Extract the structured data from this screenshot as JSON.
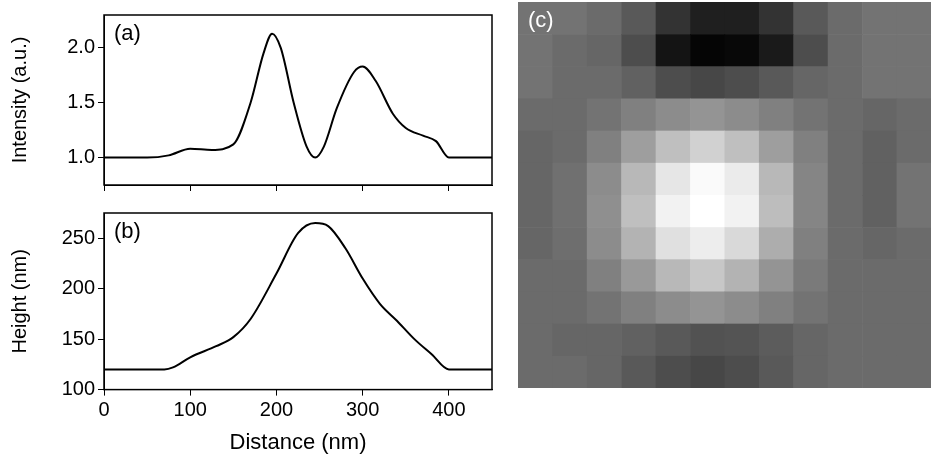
{
  "chart_data": [
    {
      "type": "line",
      "title": "(a)",
      "ylabel": "Intensity (a.u.)",
      "color": "#000000",
      "x": [
        0,
        50,
        75,
        100,
        125,
        150,
        170,
        185,
        195,
        205,
        220,
        235,
        245,
        255,
        270,
        290,
        300,
        315,
        335,
        350,
        370,
        385,
        400,
        450
      ],
      "values": [
        1.0,
        1.0,
        1.02,
        1.08,
        1.07,
        1.12,
        1.5,
        1.95,
        2.13,
        2.0,
        1.5,
        1.1,
        1.0,
        1.1,
        1.45,
        1.78,
        1.83,
        1.7,
        1.4,
        1.27,
        1.2,
        1.15,
        1.0,
        1.0
      ],
      "xlim": [
        0,
        450
      ],
      "xticks": [
        0,
        100,
        200,
        300,
        400
      ],
      "ylim": [
        0.75,
        2.3
      ],
      "yticks": [
        {
          "value": 1,
          "label": "1.0"
        },
        {
          "value": 1.5,
          "label": "1.5"
        },
        {
          "value": 2,
          "label": "2.0"
        }
      ],
      "tick_labels": "y"
    },
    {
      "type": "line",
      "title": "(b)",
      "xlabel": "Distance (nm)",
      "ylabel": "Height (nm)",
      "color": "#000000",
      "x": [
        0,
        70,
        80,
        100,
        130,
        150,
        170,
        200,
        225,
        245,
        260,
        280,
        300,
        320,
        340,
        360,
        380,
        400,
        450
      ],
      "values": [
        120,
        120,
        122,
        132,
        143,
        152,
        170,
        215,
        255,
        265,
        262,
        240,
        210,
        185,
        168,
        150,
        135,
        120,
        120
      ],
      "xlim": [
        0,
        450
      ],
      "xticks": [
        0,
        100,
        200,
        300,
        400
      ],
      "ylim": [
        100,
        275
      ],
      "yticks": [
        100,
        150,
        200,
        250
      ]
    },
    {
      "type": "heatmap",
      "title": "(c)",
      "tick_labels": false,
      "clim": [
        0,
        1
      ],
      "cells": [
        [
          0.45,
          0.45,
          0.42,
          0.35,
          0.2,
          0.12,
          0.12,
          0.2,
          0.35,
          0.42,
          0.45,
          0.45
        ],
        [
          0.45,
          0.42,
          0.4,
          0.3,
          0.08,
          0.02,
          0.03,
          0.1,
          0.3,
          0.42,
          0.45,
          0.45
        ],
        [
          0.45,
          0.42,
          0.42,
          0.38,
          0.3,
          0.28,
          0.3,
          0.35,
          0.4,
          0.42,
          0.45,
          0.45
        ],
        [
          0.42,
          0.42,
          0.45,
          0.5,
          0.55,
          0.58,
          0.55,
          0.5,
          0.45,
          0.42,
          0.4,
          0.42
        ],
        [
          0.4,
          0.42,
          0.5,
          0.62,
          0.75,
          0.82,
          0.75,
          0.62,
          0.5,
          0.42,
          0.38,
          0.42
        ],
        [
          0.4,
          0.44,
          0.55,
          0.72,
          0.9,
          0.98,
          0.92,
          0.72,
          0.52,
          0.42,
          0.38,
          0.45
        ],
        [
          0.4,
          0.44,
          0.56,
          0.75,
          0.95,
          1.0,
          0.95,
          0.74,
          0.52,
          0.42,
          0.38,
          0.45
        ],
        [
          0.4,
          0.43,
          0.55,
          0.7,
          0.88,
          0.93,
          0.85,
          0.68,
          0.5,
          0.42,
          0.4,
          0.42
        ],
        [
          0.42,
          0.42,
          0.5,
          0.6,
          0.72,
          0.78,
          0.7,
          0.58,
          0.48,
          0.42,
          0.42,
          0.42
        ],
        [
          0.42,
          0.42,
          0.45,
          0.5,
          0.55,
          0.58,
          0.55,
          0.5,
          0.45,
          0.42,
          0.42,
          0.42
        ],
        [
          0.42,
          0.4,
          0.4,
          0.38,
          0.35,
          0.32,
          0.33,
          0.36,
          0.4,
          0.42,
          0.42,
          0.42
        ],
        [
          0.42,
          0.42,
          0.4,
          0.35,
          0.3,
          0.28,
          0.3,
          0.35,
          0.4,
          0.42,
          0.42,
          0.42
        ]
      ]
    }
  ]
}
